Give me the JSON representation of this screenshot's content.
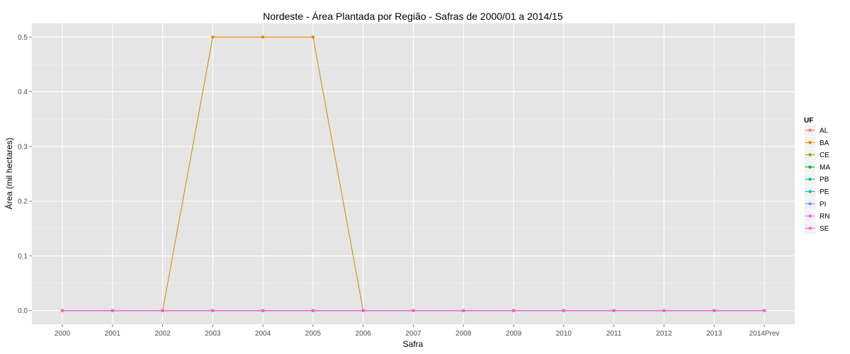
{
  "chart_data": {
    "type": "line",
    "title": "Nordeste  - Área Plantada por Região - Safras de 2000/01 a 2014/15",
    "xlabel": "Safra",
    "ylabel": "Área (mil hectares)",
    "categories": [
      "2000",
      "2001",
      "2002",
      "2003",
      "2004",
      "2005",
      "2006",
      "2007",
      "2008",
      "2009",
      "2010",
      "2011",
      "2012",
      "2013",
      "2014Prev"
    ],
    "ylim": [
      -0.025,
      0.525
    ],
    "yticks": [
      "0.0",
      "0.1",
      "0.2",
      "0.3",
      "0.4",
      "0.5"
    ],
    "ytick_values": [
      0,
      0.1,
      0.2,
      0.3,
      0.4,
      0.5
    ],
    "grid": true,
    "legend_title": "UF",
    "legend_position": "right",
    "series": [
      {
        "name": "AL",
        "color": "#F8766D",
        "values": [
          0,
          0,
          0,
          0,
          0,
          0,
          0,
          0,
          0,
          0,
          0,
          0,
          0,
          0,
          0
        ]
      },
      {
        "name": "BA",
        "color": "#D39200",
        "values": [
          0,
          0,
          0,
          0.5,
          0.5,
          0.5,
          0,
          0,
          0,
          0,
          0,
          0,
          0,
          0,
          0
        ]
      },
      {
        "name": "CE",
        "color": "#93AA00",
        "values": [
          0,
          0,
          0,
          0,
          0,
          0,
          0,
          0,
          0,
          0,
          0,
          0,
          0,
          0,
          0
        ]
      },
      {
        "name": "MA",
        "color": "#00BA38",
        "values": [
          0,
          0,
          0,
          0,
          0,
          0,
          0,
          0,
          0,
          0,
          0,
          0,
          0,
          0,
          0
        ]
      },
      {
        "name": "PB",
        "color": "#00C19F",
        "values": [
          0,
          0,
          0,
          0,
          0,
          0,
          0,
          0,
          0,
          0,
          0,
          0,
          0,
          0,
          0
        ]
      },
      {
        "name": "PE",
        "color": "#00B9E3",
        "values": [
          0,
          0,
          0,
          0,
          0,
          0,
          0,
          0,
          0,
          0,
          0,
          0,
          0,
          0,
          0
        ]
      },
      {
        "name": "PI",
        "color": "#619CFF",
        "values": [
          0,
          0,
          0,
          0,
          0,
          0,
          0,
          0,
          0,
          0,
          0,
          0,
          0,
          0,
          0
        ]
      },
      {
        "name": "RN",
        "color": "#DB72FB",
        "values": [
          0,
          0,
          0,
          0,
          0,
          0,
          0,
          0,
          0,
          0,
          0,
          0,
          0,
          0,
          0
        ]
      },
      {
        "name": "SE",
        "color": "#FF61C3",
        "values": [
          0,
          0,
          0,
          0,
          0,
          0,
          0,
          0,
          0,
          0,
          0,
          0,
          0,
          0,
          0
        ]
      }
    ]
  }
}
